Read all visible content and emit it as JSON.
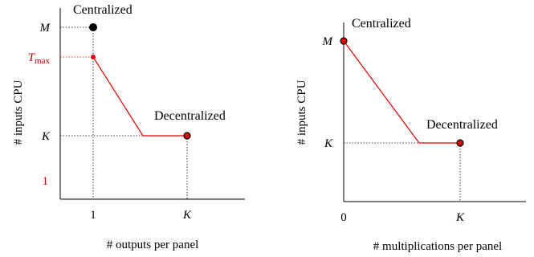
{
  "left_panel": {
    "y_axis_label": "# inputs CPU",
    "x_axis_label": "# outputs per panel",
    "y_ticks": {
      "M": "M",
      "T_main": "T",
      "T_sub": "max",
      "K": "K",
      "one": "1"
    },
    "x_ticks": {
      "one": "1",
      "K": "K"
    },
    "point_labels": {
      "centralized": "Centralized",
      "decentralized": "Decentralized"
    }
  },
  "right_panel": {
    "y_axis_label": "# inputs CPU",
    "x_axis_label": "# multiplications per panel",
    "y_ticks": {
      "M": "M",
      "K": "K"
    },
    "x_ticks": {
      "zero": "0",
      "K": "K"
    },
    "point_labels": {
      "centralized": "Centralized",
      "decentralized": "Decentralized"
    }
  },
  "colors": {
    "axis": "#000000",
    "curve": "#e00000",
    "guide": "#000000",
    "highlight_text": "#c00000",
    "point_fill": "#e00000",
    "point_black": "#000000"
  }
}
